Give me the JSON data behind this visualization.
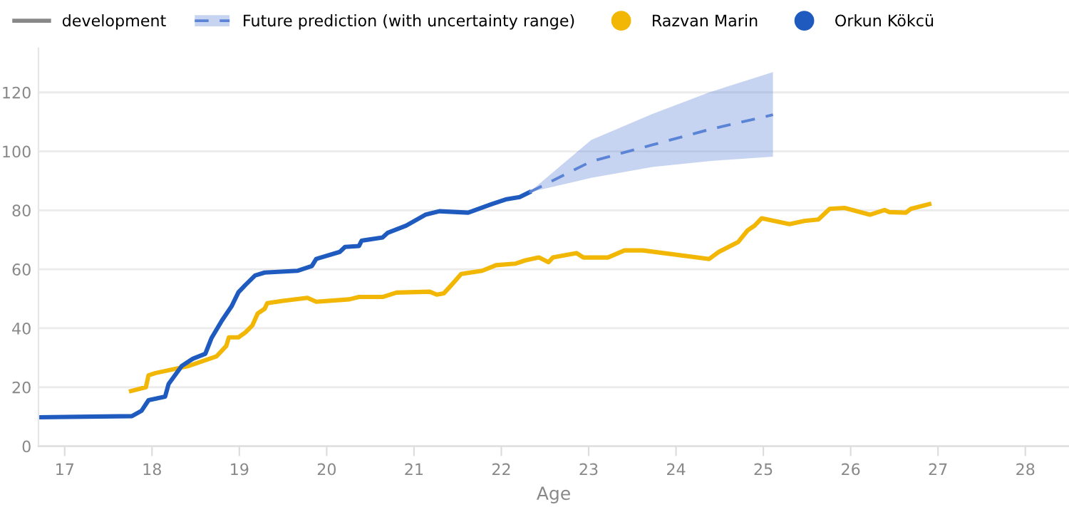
{
  "chart_data": {
    "type": "line",
    "xlabel": "Age",
    "annotations": [
      "development"
    ],
    "series": [
      {
        "name": "Razvan Marin",
        "color": "#f2b705",
        "x": [
          17.76,
          17.93,
          17.96,
          18.04,
          18.42,
          18.74,
          18.85,
          18.88,
          18.99,
          19.07,
          19.15,
          19.21,
          19.29,
          19.32,
          19.5,
          19.78,
          19.88,
          20.26,
          20.37,
          20.64,
          20.8,
          21.18,
          21.26,
          21.34,
          21.43,
          21.54,
          21.78,
          21.94,
          22.16,
          22.27,
          22.43,
          22.54,
          22.59,
          22.86,
          22.94,
          23.22,
          23.41,
          23.62,
          24.38,
          24.49,
          24.71,
          24.82,
          24.9,
          24.98,
          25.3,
          25.47,
          25.63,
          25.76,
          25.93,
          26.22,
          26.39,
          26.44,
          26.63,
          26.69,
          26.9
        ],
        "values": [
          18.7,
          20.0,
          24.0,
          24.8,
          27.2,
          30.5,
          34.0,
          36.9,
          36.9,
          38.6,
          41.0,
          45.0,
          46.6,
          48.5,
          49.3,
          50.3,
          49.0,
          49.8,
          50.6,
          50.6,
          52.1,
          52.4,
          51.4,
          51.8,
          54.7,
          58.4,
          59.5,
          61.4,
          61.9,
          63.0,
          64.0,
          62.4,
          64.0,
          65.5,
          64.0,
          64.0,
          66.4,
          66.4,
          63.5,
          65.9,
          69.2,
          73.2,
          74.8,
          77.3,
          75.3,
          76.4,
          76.9,
          80.5,
          80.8,
          78.5,
          80.1,
          79.4,
          79.2,
          80.5,
          82.1
        ]
      },
      {
        "name": "Orkun Kökcü",
        "color": "#1f5bbf",
        "x": [
          16.7,
          17.77,
          17.88,
          17.96,
          18.15,
          18.19,
          18.34,
          18.47,
          18.61,
          18.68,
          18.8,
          18.91,
          18.99,
          19.07,
          19.18,
          19.29,
          19.67,
          19.83,
          19.88,
          20.15,
          20.21,
          20.37,
          20.4,
          20.64,
          20.7,
          20.91,
          21.13,
          21.29,
          21.62,
          21.89,
          22.05,
          22.21,
          22.32
        ],
        "values": [
          9.8,
          10.2,
          12.0,
          15.6,
          16.8,
          21.1,
          27.2,
          29.7,
          31.3,
          36.6,
          42.6,
          47.4,
          52.2,
          54.7,
          57.9,
          58.9,
          59.5,
          61.1,
          63.5,
          65.9,
          67.6,
          67.9,
          69.7,
          70.8,
          72.4,
          74.8,
          78.5,
          79.7,
          79.2,
          82.1,
          83.7,
          84.5,
          86.1
        ]
      },
      {
        "name": "Future prediction (with uncertainty range)",
        "color": "#5b84d6",
        "line_style": "dashed",
        "x": [
          22.32,
          23.03,
          23.73,
          24.38,
          25.11
        ],
        "values": [
          86.1,
          96.6,
          102.2,
          107.4,
          112.4
        ],
        "lower": [
          86.1,
          91.0,
          94.7,
          96.7,
          98.2
        ],
        "upper": [
          86.1,
          103.9,
          112.7,
          120.0,
          126.9
        ]
      }
    ],
    "xlim": [
      16.7,
      28.5
    ],
    "xticks": [
      17,
      18,
      19,
      20,
      21,
      22,
      23,
      24,
      25,
      26,
      27,
      28
    ],
    "ylim": [
      0,
      135
    ],
    "yticks": [
      0,
      20,
      40,
      60,
      80,
      100,
      120
    ],
    "grid": "y",
    "legend": "top left",
    "marker": "none",
    "line_style": "solid"
  }
}
